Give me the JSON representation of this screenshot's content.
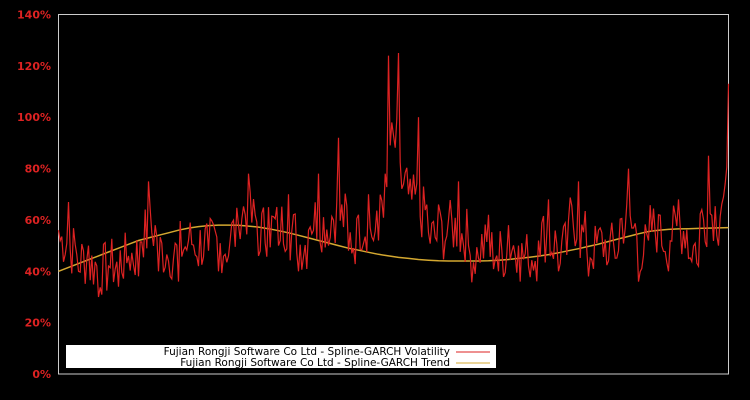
{
  "chart_data": {
    "type": "line",
    "title": "",
    "xlabel": "",
    "ylabel": "",
    "ylim": [
      0,
      140
    ],
    "y_ticks": [
      "0%",
      "20%",
      "40%",
      "60%",
      "80%",
      "100%",
      "120%",
      "140%"
    ],
    "y_tick_values": [
      0,
      20,
      40,
      60,
      80,
      100,
      120,
      140
    ],
    "grid": false,
    "legend_position": "lower-left inside plot",
    "background": "#000000",
    "frame_color": "#cccccc",
    "x": [
      0,
      10,
      20,
      30,
      40,
      50,
      60,
      70,
      80,
      90,
      100,
      110,
      120,
      130,
      140,
      150,
      160,
      170,
      180,
      190,
      200,
      210,
      220,
      230,
      240,
      250,
      260,
      270,
      280,
      290,
      300,
      310,
      320,
      330,
      340,
      350,
      360,
      370,
      380,
      390,
      400,
      410,
      420,
      430,
      440,
      450,
      460,
      470,
      480,
      490,
      500,
      510,
      520,
      530,
      540,
      550,
      560,
      570,
      580,
      590,
      600,
      610,
      620,
      630,
      640,
      650,
      660,
      670
    ],
    "series": [
      {
        "name": "Fujian Rongji Software Co Ltd - Spline-GARCH Volatility",
        "color": "#dd2222",
        "values": [
          56,
          67,
          40,
          50,
          30,
          42,
          34,
          46,
          38,
          75,
          40,
          44,
          36,
          52,
          42,
          48,
          40,
          46,
          58,
          78,
          46,
          65,
          50,
          70,
          40,
          56,
          78,
          50,
          92,
          48,
          62,
          70,
          52,
          124,
          125,
          70,
          100,
          55,
          66,
          60,
          75,
          50,
          45,
          62,
          40,
          58,
          50,
          42,
          52,
          68,
          40,
          60,
          75,
          38,
          56,
          44,
          48,
          80,
          36,
          52,
          62,
          40,
          68,
          45,
          42,
          85,
          50,
          113
        ]
      },
      {
        "name": "Fujian Rongji Software Co Ltd - Spline-GARCH Trend",
        "color": "#d4a830",
        "values": [
          40,
          41.5,
          43,
          44.5,
          46,
          47.5,
          49,
          50.5,
          52,
          53,
          54,
          55,
          56,
          56.8,
          57.4,
          57.8,
          58,
          58,
          57.9,
          57.6,
          57.2,
          56.6,
          55.8,
          55,
          54,
          53,
          52,
          51,
          50,
          49,
          48.2,
          47.4,
          46.6,
          46,
          45.4,
          45,
          44.6,
          44.3,
          44.1,
          44,
          44,
          44,
          44,
          44.1,
          44.3,
          44.6,
          45,
          45.4,
          45.9,
          46.5,
          47.2,
          48,
          48.8,
          49.7,
          50.6,
          51.6,
          52.6,
          53.6,
          54.6,
          55.5,
          56,
          56.3,
          56.5,
          56.6,
          56.7,
          56.8,
          56.9,
          57
        ]
      }
    ]
  },
  "legend": {
    "items": [
      {
        "label": "Fujian Rongji Software Co Ltd - Spline-GARCH Volatility",
        "color": "#dd2222"
      },
      {
        "label": "Fujian Rongji Software Co Ltd - Spline-GARCH Trend",
        "color": "#d4a830"
      }
    ]
  }
}
